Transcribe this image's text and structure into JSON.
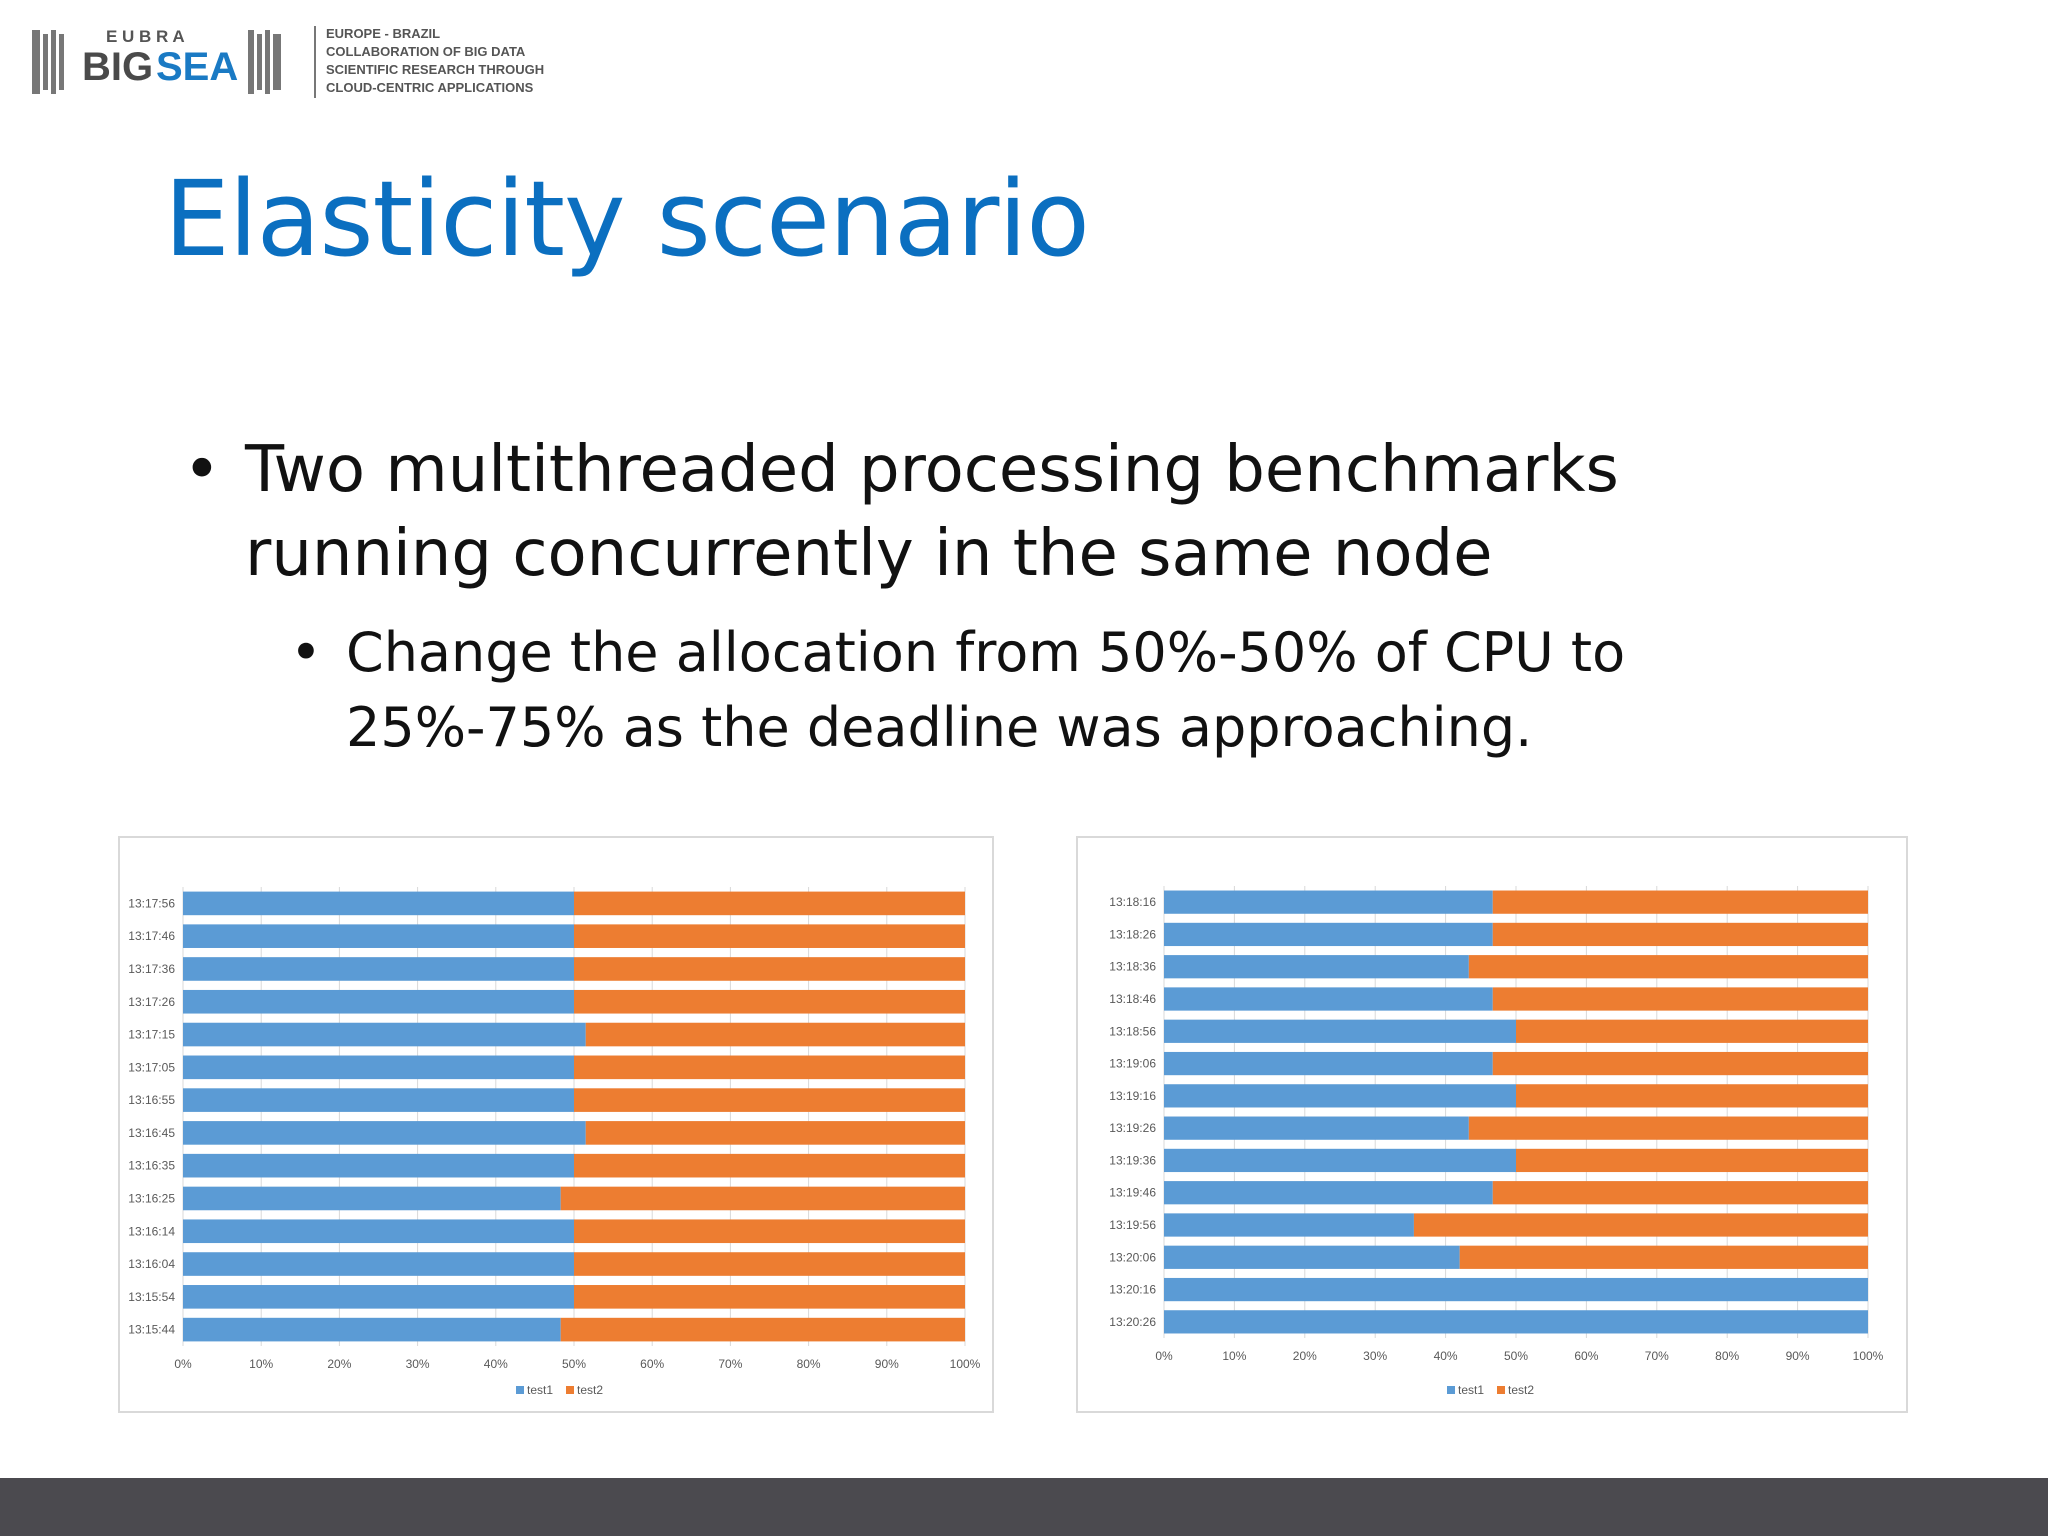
{
  "logo": {
    "eubra": "E U B R A",
    "big": "BIG",
    "sea": "SEA",
    "lines": [
      "EUROPE - BRAZIL",
      "COLLABORATION OF BIG DATA",
      "SCIENTIFIC RESEARCH THROUGH",
      "CLOUD-CENTRIC APPLICATIONS"
    ]
  },
  "slide": {
    "title": "Elasticity scenario",
    "bullets": [
      "Two multithreaded processing benchmarks running concurrently in the same node"
    ],
    "subbullets": [
      "Change the allocation from 50%-50% of CPU to 25%-75% as the deadline was approaching."
    ]
  },
  "colors": {
    "title": "#0b6fc0",
    "test1": "#5b9bd5",
    "test2": "#ed7d31",
    "footer": "#4b4a4f"
  },
  "chart_data": [
    {
      "type": "bar",
      "orientation": "horizontal",
      "stacked": "100%",
      "categories": [
        "13:17:56",
        "13:17:46",
        "13:17:36",
        "13:17:26",
        "13:17:15",
        "13:17:05",
        "13:16:55",
        "13:16:45",
        "13:16:35",
        "13:16:25",
        "13:16:14",
        "13:16:04",
        "13:15:54",
        "13:15:44"
      ],
      "series": [
        {
          "name": "test1",
          "values": [
            50,
            50,
            50,
            50,
            51.5,
            50,
            50,
            51.5,
            50,
            48.3,
            50,
            50,
            50,
            48.3
          ]
        },
        {
          "name": "test2",
          "values": [
            50,
            50,
            50,
            50,
            48.5,
            50,
            50,
            48.5,
            50,
            51.7,
            50,
            50,
            50,
            51.7
          ]
        }
      ],
      "xticks": [
        "0%",
        "10%",
        "20%",
        "30%",
        "40%",
        "50%",
        "60%",
        "70%",
        "80%",
        "90%",
        "100%"
      ],
      "xlim": [
        0,
        100
      ],
      "grid": "vertical",
      "legend": "bottom"
    },
    {
      "type": "bar",
      "orientation": "horizontal",
      "stacked": "100%",
      "categories": [
        "13:18:16",
        "13:18:26",
        "13:18:36",
        "13:18:46",
        "13:18:56",
        "13:19:06",
        "13:19:16",
        "13:19:26",
        "13:19:36",
        "13:19:46",
        "13:19:56",
        "13:20:06",
        "13:20:16",
        "13:20:26"
      ],
      "series": [
        {
          "name": "test1",
          "values": [
            46.7,
            46.7,
            43.3,
            46.7,
            50,
            46.7,
            50,
            43.3,
            50,
            46.7,
            35.5,
            42,
            100,
            100
          ]
        },
        {
          "name": "test2",
          "values": [
            53.3,
            53.3,
            56.7,
            53.3,
            50,
            53.3,
            50,
            56.7,
            50,
            53.3,
            64.5,
            58,
            0,
            0
          ]
        }
      ],
      "xticks": [
        "0%",
        "10%",
        "20%",
        "30%",
        "40%",
        "50%",
        "60%",
        "70%",
        "80%",
        "90%",
        "100%"
      ],
      "xlim": [
        0,
        100
      ],
      "grid": "vertical",
      "legend": "bottom"
    }
  ]
}
